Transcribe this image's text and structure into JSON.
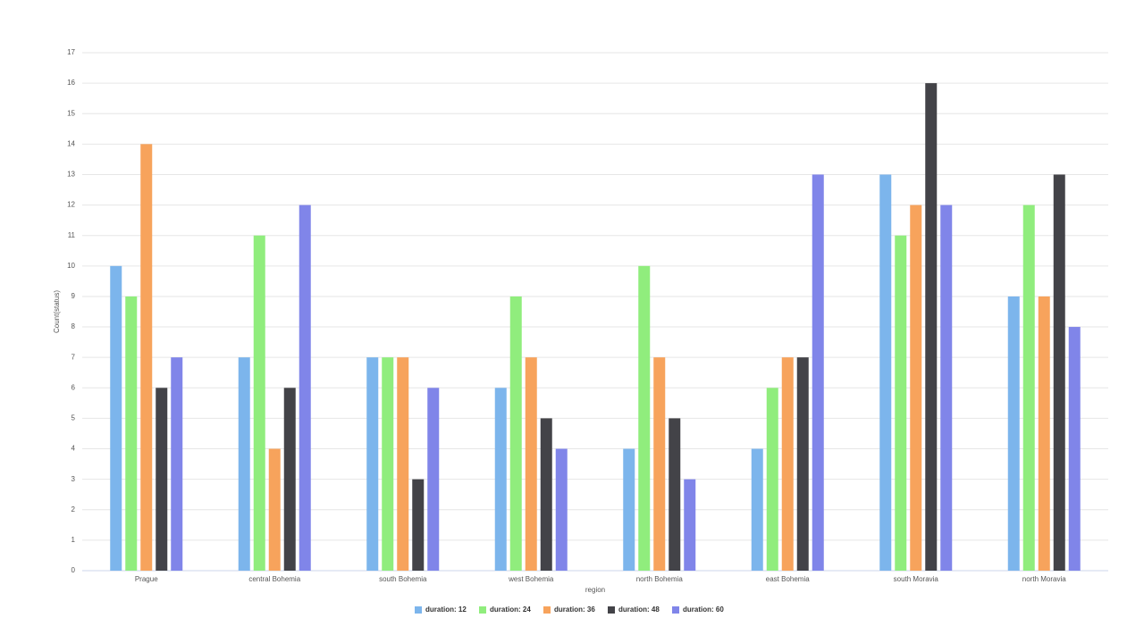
{
  "chart_data": {
    "type": "bar",
    "x_label": "region",
    "y_label": "Count(status)",
    "categories": [
      "Prague",
      "central Bohemia",
      "south Bohemia",
      "west Bohemia",
      "north Bohemia",
      "east Bohemia",
      "south Moravia",
      "north Moravia"
    ],
    "series": [
      {
        "name": "duration: 12",
        "color": "#7cb5ec",
        "values": [
          10,
          7,
          7,
          6,
          4,
          4,
          13,
          9
        ]
      },
      {
        "name": "duration: 24",
        "color": "#90ed7d",
        "values": [
          9,
          11,
          7,
          9,
          10,
          6,
          11,
          12
        ]
      },
      {
        "name": "duration: 36",
        "color": "#f7a35c",
        "values": [
          14,
          4,
          7,
          7,
          7,
          7,
          12,
          9
        ]
      },
      {
        "name": "duration: 48",
        "color": "#434348",
        "values": [
          6,
          6,
          3,
          5,
          5,
          7,
          16,
          13
        ]
      },
      {
        "name": "duration: 60",
        "color": "#8085e9",
        "values": [
          7,
          12,
          6,
          4,
          3,
          13,
          12,
          8
        ]
      }
    ],
    "ylim": [
      0,
      17
    ],
    "yticks": [
      0,
      1,
      2,
      3,
      4,
      5,
      6,
      7,
      8,
      9,
      10,
      11,
      12,
      13,
      14,
      15,
      16,
      17
    ],
    "grid": true,
    "legend": "bottom"
  }
}
